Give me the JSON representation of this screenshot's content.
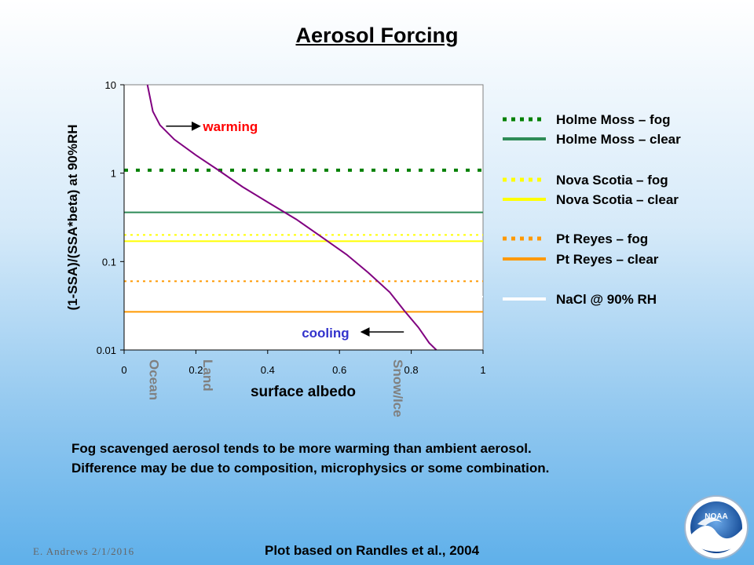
{
  "slide": {
    "title": "Aerosol Forcing",
    "captions": [
      "Fog scavenged aerosol tends to be more warming than ambient aerosol.",
      "Difference may be due to composition, microphysics or some combination."
    ],
    "footer_author": "E. Andrews   2/1/2016",
    "footer_source": "Plot based on Randles et al., 2004",
    "logo_text": "NOAA"
  },
  "chart_data": {
    "type": "line",
    "title": "",
    "xlabel": "surface albedo",
    "ylabel": "(1-SSA)/(SSA*beta) at 90%RH",
    "xlim": [
      0,
      1
    ],
    "ylim": [
      0.01,
      10
    ],
    "yscale": "log",
    "x_ticks": [
      "0",
      "0.2",
      "0.4",
      "0.6",
      "0.8",
      "1"
    ],
    "y_ticks": [
      "0.01",
      "0.1",
      "1",
      "10"
    ],
    "grid": false,
    "legend_position": "right",
    "surface_labels": [
      {
        "text": "Ocean",
        "x": 0.06
      },
      {
        "text": "Land",
        "x": 0.21
      },
      {
        "text": "Snow/Ice",
        "x": 0.74
      }
    ],
    "annotations": [
      {
        "text": "warming",
        "x": 0.2,
        "y": 3.4,
        "color": "#ff0000",
        "arrow": "left"
      },
      {
        "text": "cooling",
        "x": 0.67,
        "y": 0.016,
        "color": "#3333cc",
        "arrow": "right"
      }
    ],
    "curve": {
      "color": "#800080",
      "x": [
        0.065,
        0.08,
        0.1,
        0.14,
        0.2,
        0.26,
        0.33,
        0.4,
        0.48,
        0.55,
        0.62,
        0.68,
        0.74,
        0.78,
        0.82,
        0.85,
        0.87
      ],
      "y": [
        10,
        5,
        3.5,
        2.4,
        1.6,
        1.1,
        0.7,
        0.47,
        0.3,
        0.19,
        0.12,
        0.075,
        0.045,
        0.028,
        0.018,
        0.012,
        0.01
      ]
    },
    "series": [
      {
        "name": "Holme Moss – fog",
        "value": 1.08,
        "color": "#008000",
        "style": "dotted"
      },
      {
        "name": "Holme Moss – clear",
        "value": 0.36,
        "color": "#2e8b57",
        "style": "solid"
      },
      {
        "name": "Nova Scotia – fog",
        "value": 0.2,
        "color": "#ffff00",
        "style": "dotted"
      },
      {
        "name": "Nova Scotia – clear",
        "value": 0.17,
        "color": "#ffff00",
        "style": "solid"
      },
      {
        "name": "Pt Reyes – fog",
        "value": 0.06,
        "color": "#ff9900",
        "style": "dotted"
      },
      {
        "name": "Pt Reyes – clear",
        "value": 0.027,
        "color": "#ff9900",
        "style": "solid"
      },
      {
        "name": "NaCl @ 90% RH",
        "value": 0.04,
        "color": "#ffffff",
        "style": "solid"
      }
    ]
  }
}
